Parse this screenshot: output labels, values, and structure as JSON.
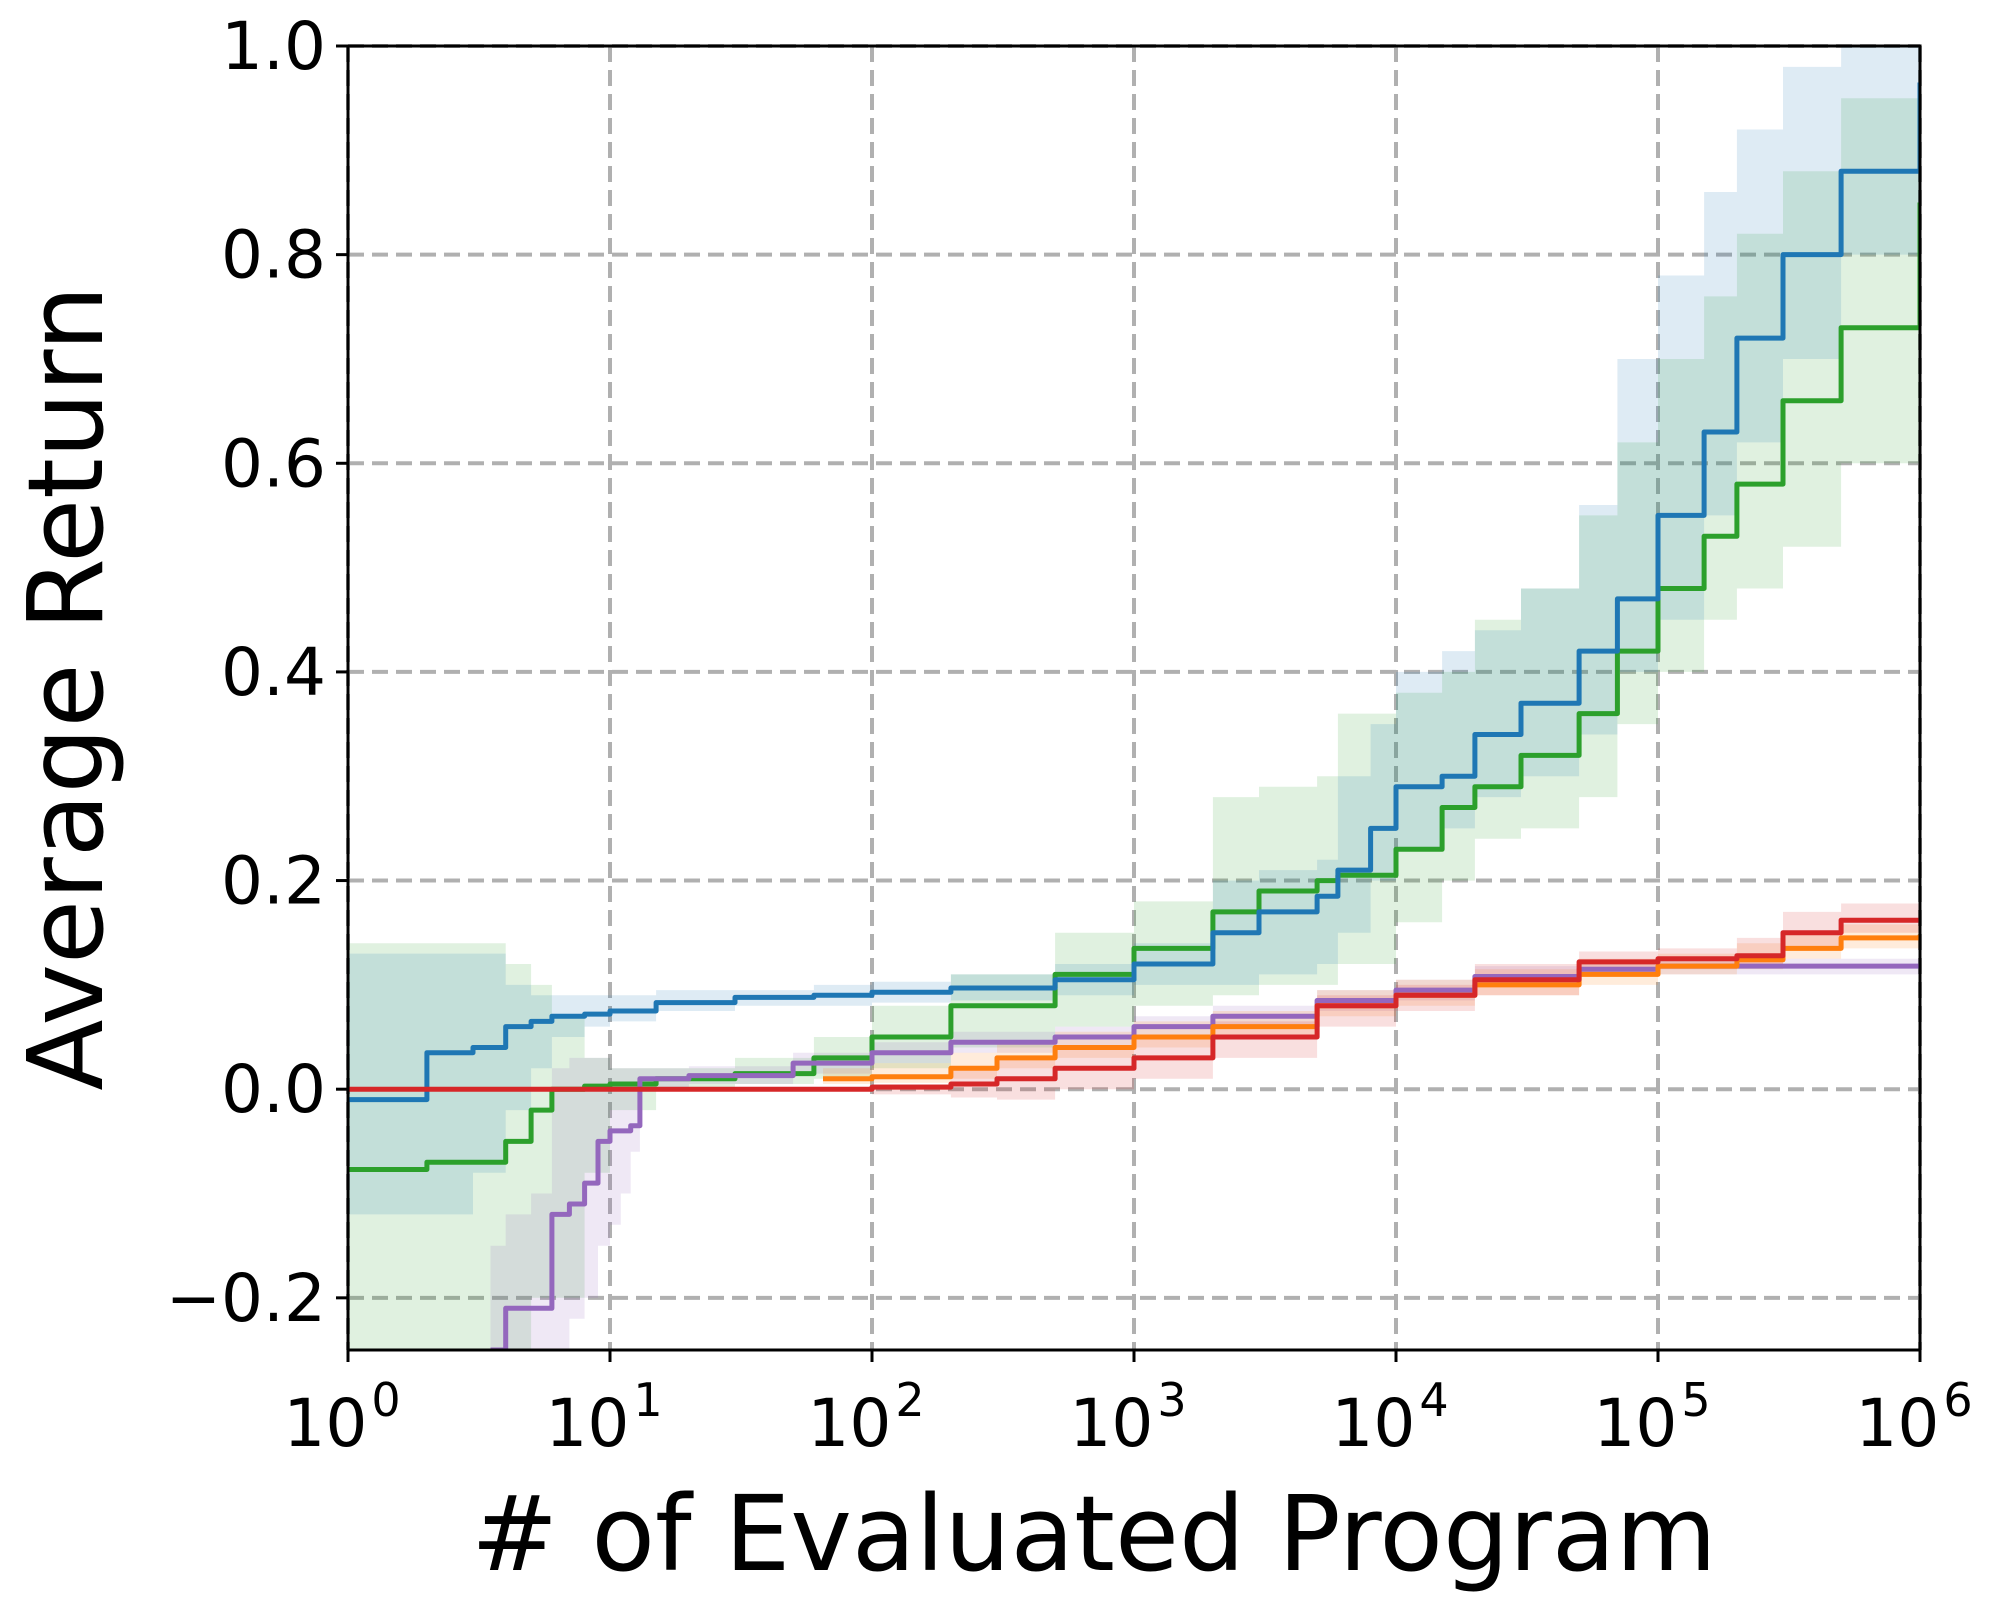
{
  "chart_data": {
    "type": "line",
    "xlabel": "# of Evaluated Program",
    "ylabel": "Average Return",
    "xscale": "log",
    "xlim": [
      1,
      1000000
    ],
    "ylim": [
      -0.25,
      1.0
    ],
    "grid": true,
    "x_ticks": [
      {
        "base": "10",
        "exp": "0",
        "value": 1
      },
      {
        "base": "10",
        "exp": "1",
        "value": 10
      },
      {
        "base": "10",
        "exp": "2",
        "value": 100
      },
      {
        "base": "10",
        "exp": "3",
        "value": 1000
      },
      {
        "base": "10",
        "exp": "4",
        "value": 10000
      },
      {
        "base": "10",
        "exp": "5",
        "value": 100000
      },
      {
        "base": "10",
        "exp": "6",
        "value": 1000000
      }
    ],
    "y_ticks": [
      {
        "label": "−0.2",
        "value": -0.2
      },
      {
        "label": "0.0",
        "value": 0.0
      },
      {
        "label": "0.2",
        "value": 0.2
      },
      {
        "label": "0.4",
        "value": 0.4
      },
      {
        "label": "0.6",
        "value": 0.6
      },
      {
        "label": "0.8",
        "value": 0.8
      },
      {
        "label": "1.0",
        "value": 1.0
      }
    ],
    "series": [
      {
        "color": "#2ca02c",
        "band_color": "#2ca02c",
        "x": [
          1,
          2,
          3,
          4,
          5,
          6,
          8,
          10,
          15,
          30,
          60,
          100,
          200,
          500,
          1000,
          2000,
          3000,
          5000,
          6000,
          10000,
          15000,
          20000,
          30000,
          50000,
          70000,
          100000,
          150000,
          200000,
          300000,
          500000,
          1000000
        ],
        "y": [
          -0.077,
          -0.07,
          -0.07,
          -0.05,
          -0.02,
          0.0,
          0.003,
          0.005,
          0.01,
          0.015,
          0.03,
          0.05,
          0.08,
          0.11,
          0.135,
          0.17,
          0.19,
          0.2,
          0.205,
          0.23,
          0.27,
          0.29,
          0.32,
          0.36,
          0.42,
          0.48,
          0.53,
          0.58,
          0.66,
          0.73,
          0.85
        ],
        "lower": [
          -0.25,
          -0.25,
          -0.25,
          -0.25,
          -0.2,
          -0.2,
          -0.08,
          -0.02,
          0.0,
          0.005,
          0.01,
          0.02,
          0.04,
          0.06,
          0.08,
          0.09,
          0.1,
          0.1,
          0.12,
          0.16,
          0.2,
          0.24,
          0.25,
          0.28,
          0.35,
          0.4,
          0.45,
          0.48,
          0.52,
          0.6,
          0.74
        ],
        "upper": [
          0.14,
          0.14,
          0.14,
          0.12,
          0.1,
          0.07,
          0.03,
          0.02,
          0.02,
          0.03,
          0.05,
          0.08,
          0.11,
          0.15,
          0.18,
          0.28,
          0.29,
          0.3,
          0.36,
          0.38,
          0.4,
          0.45,
          0.48,
          0.55,
          0.62,
          0.7,
          0.76,
          0.82,
          0.88,
          0.95,
          1.0
        ]
      },
      {
        "color": "#1f77b4",
        "band_color": "#1f77b4",
        "x": [
          1,
          2,
          3,
          4,
          5,
          6,
          8,
          10,
          15,
          30,
          60,
          100,
          200,
          500,
          1000,
          2000,
          3000,
          5000,
          6000,
          8000,
          10000,
          15000,
          20000,
          30000,
          50000,
          70000,
          100000,
          150000,
          200000,
          300000,
          500000,
          1000000
        ],
        "y": [
          -0.01,
          0.035,
          0.04,
          0.06,
          0.065,
          0.07,
          0.072,
          0.075,
          0.083,
          0.088,
          0.09,
          0.093,
          0.097,
          0.105,
          0.12,
          0.15,
          0.17,
          0.185,
          0.21,
          0.25,
          0.29,
          0.3,
          0.34,
          0.37,
          0.42,
          0.47,
          0.55,
          0.63,
          0.72,
          0.8,
          0.88,
          0.965
        ],
        "lower": [
          -0.12,
          -0.12,
          -0.08,
          -0.02,
          0.02,
          0.05,
          0.06,
          0.065,
          0.075,
          0.08,
          0.08,
          0.083,
          0.085,
          0.09,
          0.1,
          0.1,
          0.11,
          0.12,
          0.15,
          0.2,
          0.23,
          0.25,
          0.28,
          0.3,
          0.34,
          0.4,
          0.45,
          0.55,
          0.62,
          0.7,
          0.8,
          0.88
        ],
        "upper": [
          0.13,
          0.13,
          0.13,
          0.1,
          0.09,
          0.09,
          0.09,
          0.09,
          0.095,
          0.095,
          0.1,
          0.103,
          0.11,
          0.12,
          0.14,
          0.2,
          0.21,
          0.22,
          0.3,
          0.35,
          0.4,
          0.42,
          0.44,
          0.48,
          0.56,
          0.7,
          0.78,
          0.86,
          0.92,
          0.98,
          1.0,
          1.0
        ]
      },
      {
        "color": "#9467bd",
        "band_color": "#9467bd",
        "x": [
          3.5,
          4,
          5,
          6,
          7,
          8,
          9,
          10,
          11,
          12,
          13,
          20,
          50,
          100,
          200,
          500,
          1000,
          2000,
          5000,
          10000,
          20000,
          50000,
          100000,
          1000000
        ],
        "y": [
          -0.25,
          -0.21,
          -0.21,
          -0.12,
          -0.11,
          -0.09,
          -0.05,
          -0.04,
          -0.04,
          -0.035,
          0.01,
          0.013,
          0.025,
          0.035,
          0.045,
          0.05,
          0.06,
          0.07,
          0.085,
          0.095,
          0.108,
          0.115,
          0.118,
          0.118
        ],
        "lower": [
          -0.25,
          -0.25,
          -0.25,
          -0.25,
          -0.22,
          -0.2,
          -0.15,
          -0.13,
          -0.1,
          -0.06,
          0.0,
          0.005,
          0.015,
          0.025,
          0.035,
          0.04,
          0.05,
          0.06,
          0.075,
          0.085,
          0.1,
          0.108,
          0.11,
          0.11
        ],
        "upper": [
          -0.15,
          -0.12,
          -0.1,
          0.02,
          0.03,
          0.03,
          0.03,
          0.02,
          0.02,
          0.02,
          0.02,
          0.022,
          0.035,
          0.045,
          0.055,
          0.06,
          0.07,
          0.08,
          0.095,
          0.105,
          0.118,
          0.122,
          0.125,
          0.125
        ]
      },
      {
        "color": "#ff7f0e",
        "band_color": "#ff7f0e",
        "x": [
          65,
          100,
          200,
          300,
          500,
          1000,
          2000,
          5000,
          10000,
          20000,
          50000,
          100000,
          200000,
          300000,
          500000,
          1000000
        ],
        "y": [
          0.01,
          0.012,
          0.02,
          0.03,
          0.04,
          0.05,
          0.06,
          0.08,
          0.09,
          0.1,
          0.11,
          0.118,
          0.124,
          0.135,
          0.145,
          0.148
        ],
        "lower": [
          0.005,
          0.006,
          0.01,
          0.02,
          0.03,
          0.04,
          0.05,
          0.07,
          0.08,
          0.09,
          0.1,
          0.11,
          0.115,
          0.125,
          0.135,
          0.138
        ],
        "upper": [
          0.02,
          0.025,
          0.035,
          0.045,
          0.055,
          0.065,
          0.075,
          0.095,
          0.105,
          0.115,
          0.125,
          0.13,
          0.14,
          0.15,
          0.158,
          0.16
        ]
      },
      {
        "color": "#d62728",
        "band_color": "#d62728",
        "x": [
          1,
          10,
          50,
          100,
          200,
          300,
          500,
          1000,
          2000,
          5000,
          10000,
          20000,
          50000,
          100000,
          200000,
          300000,
          500000,
          1000000
        ],
        "y": [
          0.0,
          0.0,
          0.0,
          0.002,
          0.005,
          0.01,
          0.02,
          0.03,
          0.05,
          0.08,
          0.09,
          0.105,
          0.122,
          0.125,
          0.128,
          0.15,
          0.162,
          0.163
        ],
        "lower": [
          0.0,
          0.0,
          0.0,
          -0.005,
          -0.008,
          -0.01,
          0.0,
          0.01,
          0.03,
          0.06,
          0.075,
          0.09,
          0.11,
          0.115,
          0.118,
          0.135,
          0.15,
          0.15
        ],
        "upper": [
          0.0,
          0.0,
          0.0,
          0.005,
          0.02,
          0.03,
          0.04,
          0.05,
          0.065,
          0.09,
          0.1,
          0.12,
          0.132,
          0.135,
          0.145,
          0.17,
          0.178,
          0.178
        ]
      }
    ]
  }
}
